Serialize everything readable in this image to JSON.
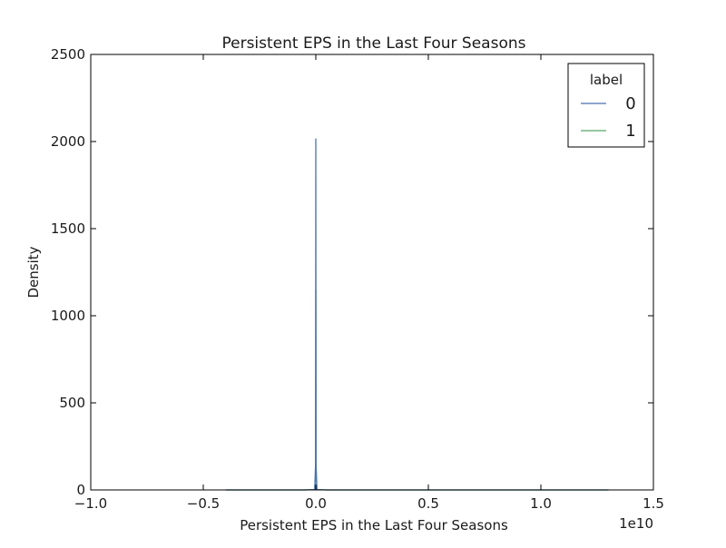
{
  "chart_data": {
    "type": "line",
    "title": "Persistent EPS in the Last Four Seasons",
    "xlabel": "Persistent EPS in the Last Four Seasons",
    "ylabel": "Density",
    "x_offset_label": "1e10",
    "xlim": [
      -1.0,
      1.5
    ],
    "ylim": [
      0,
      2500
    ],
    "x_ticks": [
      -1.0,
      -0.5,
      0.0,
      0.5,
      1.0,
      1.5
    ],
    "x_tick_labels": [
      "−1.0",
      "−0.5",
      "0.0",
      "0.5",
      "1.0",
      "1.5"
    ],
    "y_ticks": [
      0,
      500,
      1000,
      1500,
      2000,
      2500
    ],
    "y_tick_labels": [
      "0",
      "500",
      "1000",
      "1500",
      "2000",
      "2500"
    ],
    "grid": false,
    "legend": {
      "title": "label",
      "placement": "top-right",
      "entries": [
        "0",
        "1"
      ]
    },
    "series": [
      {
        "name": "0",
        "color": "#4c72b0",
        "x": [
          -0.4,
          -0.05,
          -0.005,
          -0.001,
          0.0,
          0.001,
          0.005,
          0.05,
          0.6,
          1.3
        ],
        "y": [
          0,
          0,
          2,
          150,
          2015,
          150,
          2,
          0,
          0,
          0
        ]
      },
      {
        "name": "1",
        "color": "#55a868",
        "x": [
          -0.4,
          -0.05,
          -0.005,
          -0.001,
          0.0,
          0.001,
          0.005,
          0.05,
          0.6,
          1.3
        ],
        "y": [
          0,
          0,
          2,
          90,
          1150,
          90,
          2,
          0,
          0,
          0
        ]
      }
    ]
  }
}
